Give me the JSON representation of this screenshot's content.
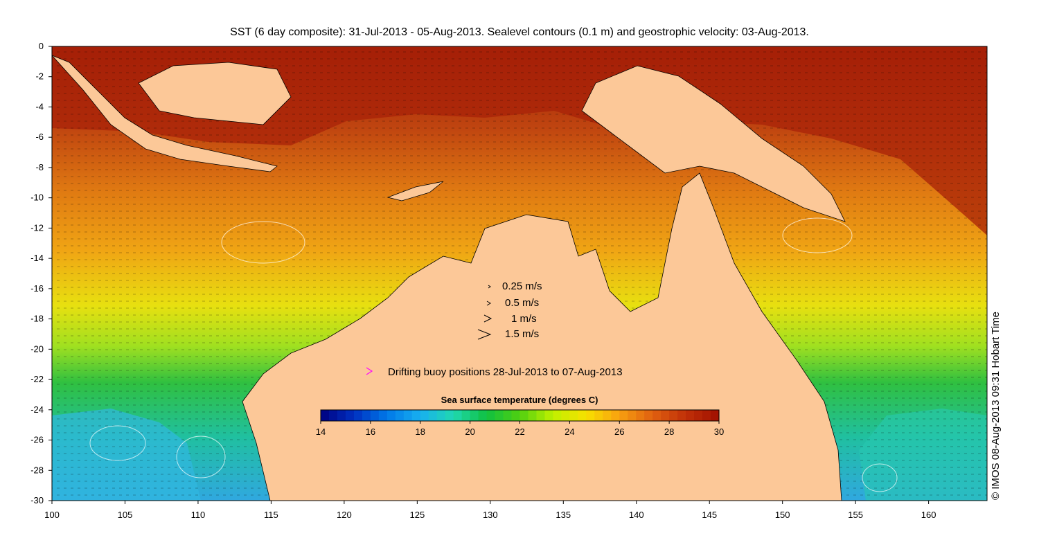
{
  "title": "SST (6 day composite): 31-Jul-2013 - 05-Aug-2013. Sealevel contours (0.1 m) and geostrophic velocity: 03-Aug-2013.",
  "credit": "© IMOS 08-Aug-2013 09:31 Hobart Time",
  "map": {
    "lon_range": [
      100,
      164
    ],
    "lat_range": [
      -30,
      0
    ],
    "lon_ticks": [
      "100",
      "105",
      "110",
      "115",
      "120",
      "125",
      "130",
      "135",
      "140",
      "145",
      "150",
      "155",
      "160"
    ],
    "lat_ticks": [
      "0",
      "-2",
      "-4",
      "-6",
      "-8",
      "-10",
      "-12",
      "-14",
      "-16",
      "-18",
      "-20",
      "-22",
      "-24",
      "-26",
      "-28",
      "-30"
    ],
    "land_color": "#fcc898",
    "buoy_color": "#ff00ff"
  },
  "velocity_legend": {
    "entries": [
      {
        "label": "0.25 m/s",
        "speed": 0.25
      },
      {
        "label": "0.5 m/s",
        "speed": 0.5
      },
      {
        "label": "1 m/s",
        "speed": 1
      },
      {
        "label": "1.5 m/s",
        "speed": 1.5
      }
    ]
  },
  "buoy_legend": {
    "label": "Drifting buoy positions 28-Jul-2013 to 07-Aug-2013"
  },
  "colorbar": {
    "title": "Sea surface temperature (degrees C)",
    "range": [
      14,
      30
    ],
    "ticks": [
      "14",
      "16",
      "18",
      "20",
      "22",
      "24",
      "26",
      "28",
      "30"
    ],
    "stops": [
      "#000080",
      "#0030c0",
      "#0078e8",
      "#18b0f0",
      "#20d8b0",
      "#10c040",
      "#50d010",
      "#c0f000",
      "#f8e000",
      "#f8a010",
      "#e06010",
      "#c03008",
      "#a01000"
    ]
  }
}
